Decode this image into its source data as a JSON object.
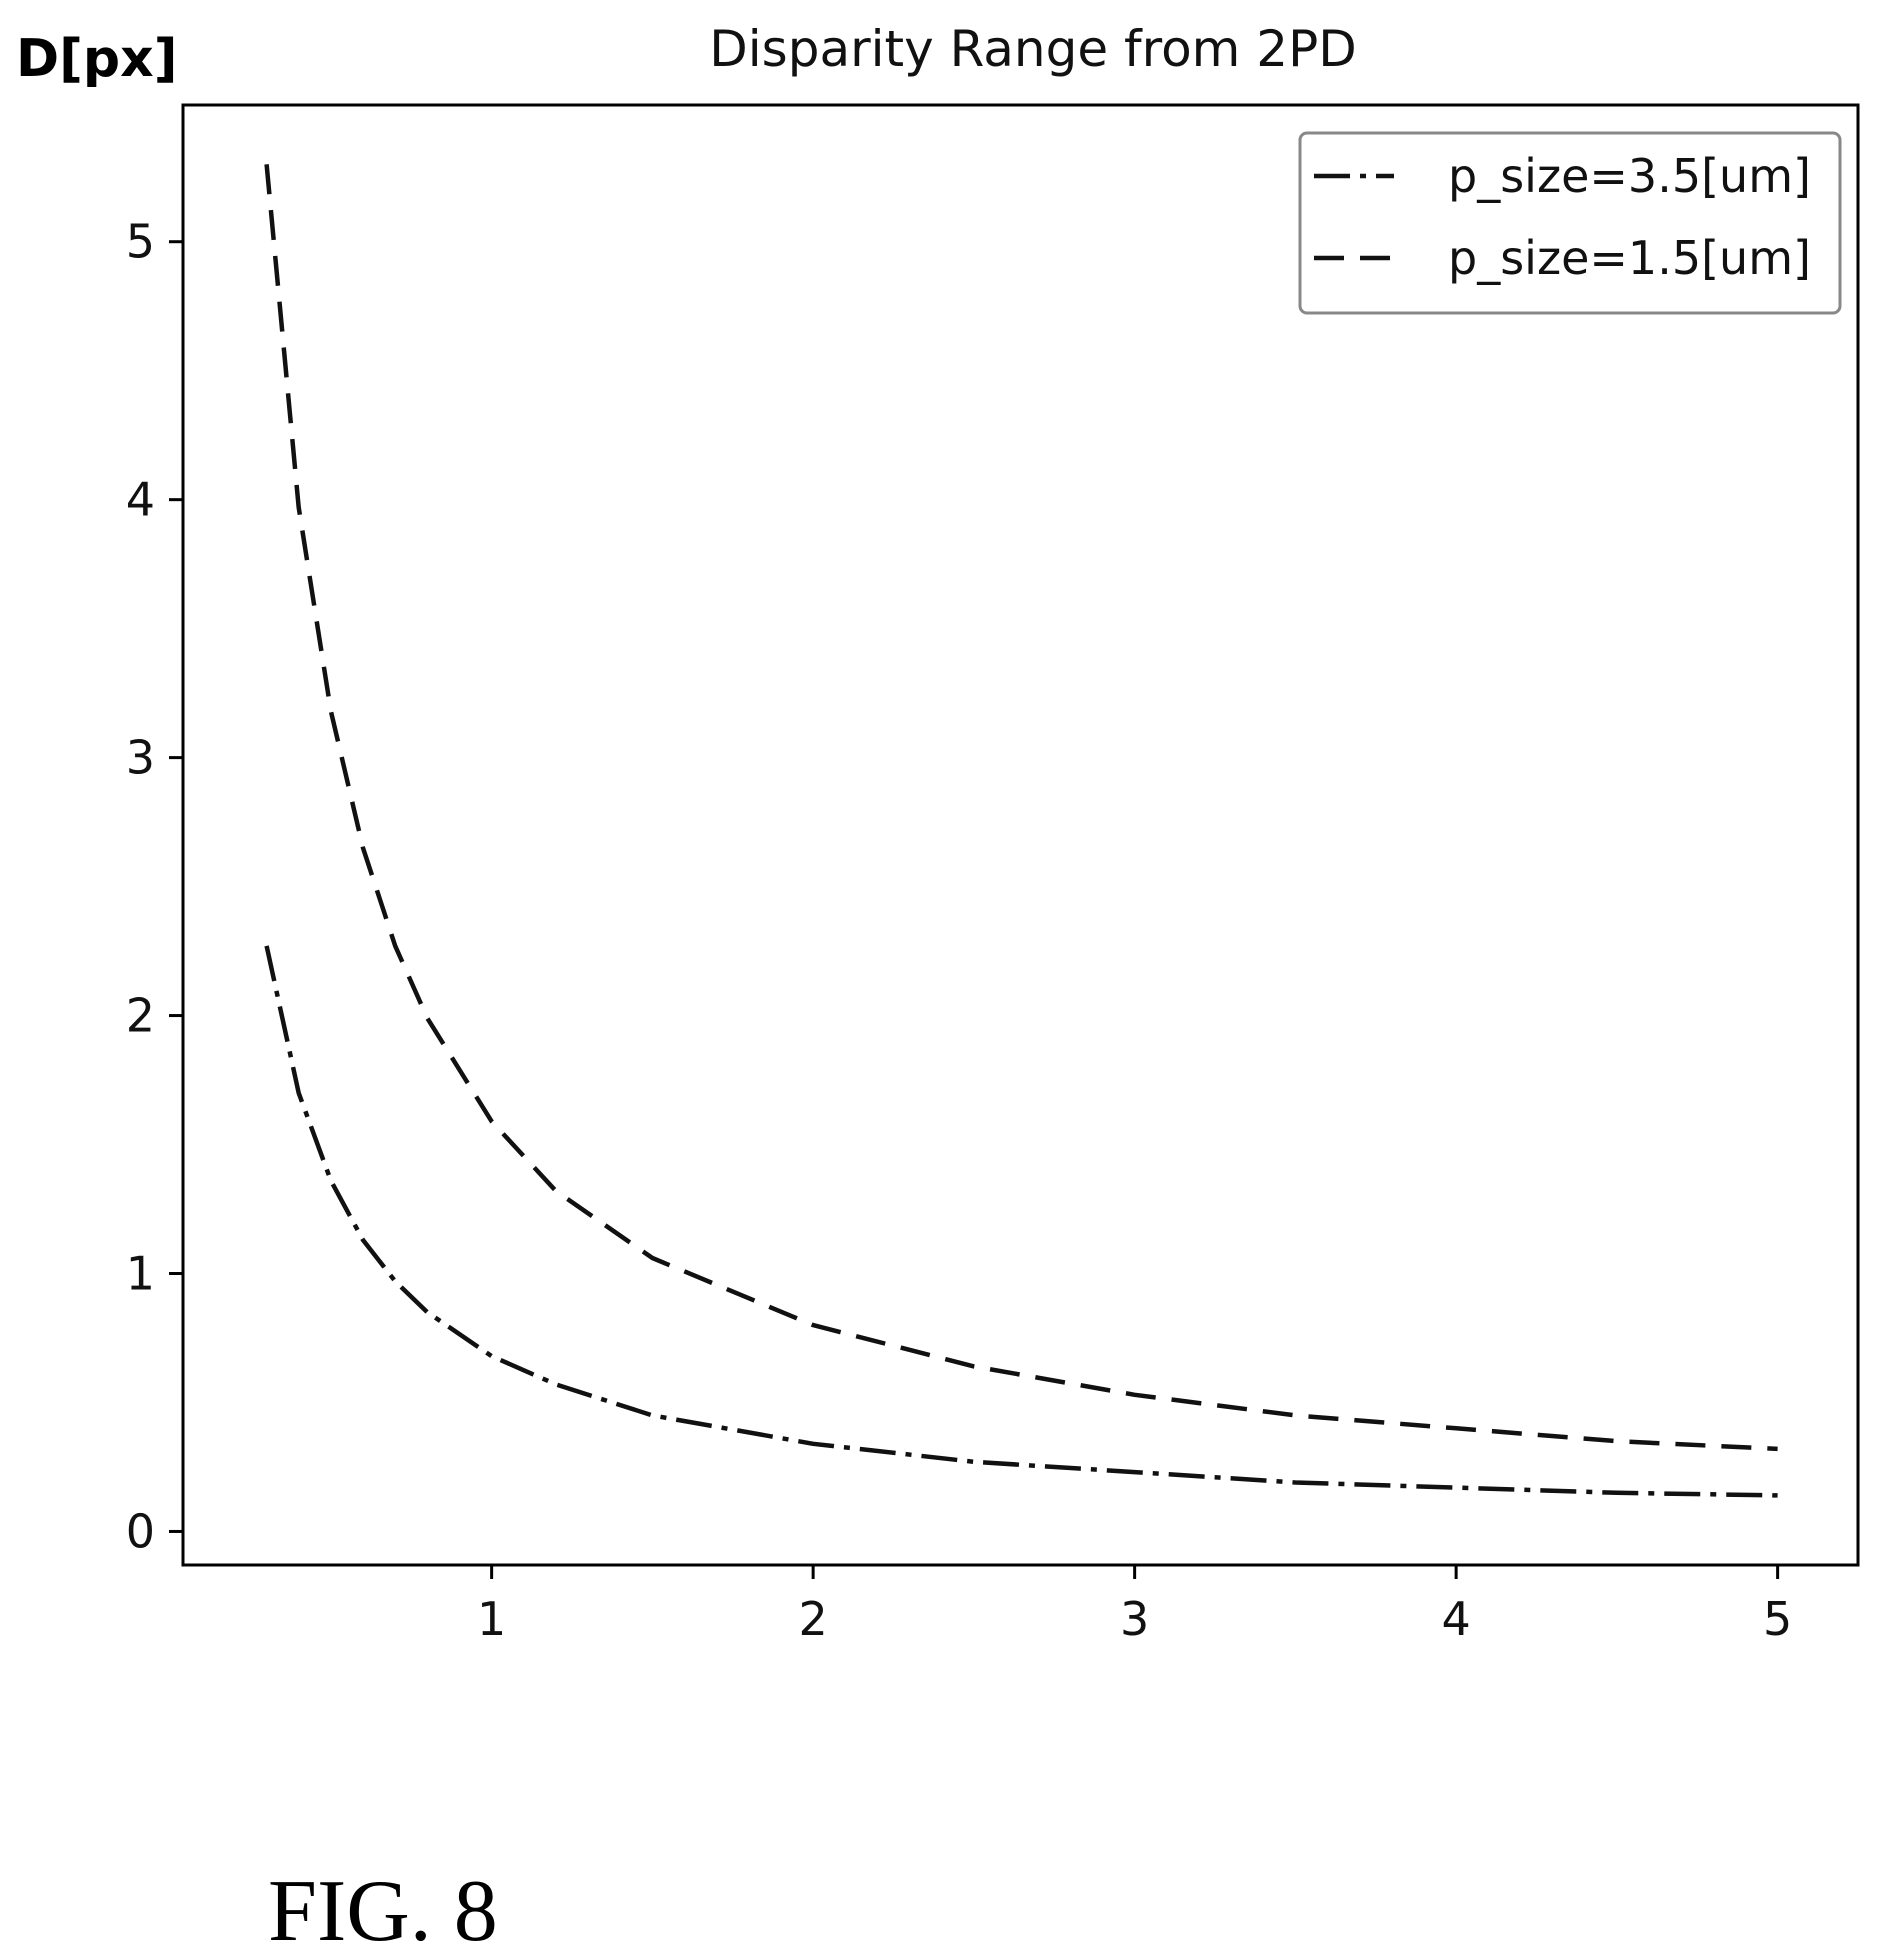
{
  "figure_caption": "FIG. 8",
  "chart_data": {
    "type": "line",
    "title": "Disparity Range from 2PD",
    "ylabel": "D[px]",
    "xlabel": "",
    "xlim": [
      0.04,
      5.25
    ],
    "ylim": [
      -0.13,
      5.53
    ],
    "xticks": [
      1,
      2,
      3,
      4,
      5
    ],
    "xtick_labels": [
      "1",
      "2",
      "3",
      "4",
      "5"
    ],
    "yticks": [
      0,
      1,
      2,
      3,
      4,
      5
    ],
    "ytick_labels": [
      "0",
      "1",
      "2",
      "3",
      "4",
      "5"
    ],
    "grid": false,
    "legend_position": "top-right",
    "series": [
      {
        "name": "p_size=3.5[um]",
        "style": "dash-dot",
        "color": "#111111",
        "x": [
          0.3,
          0.4,
          0.5,
          0.6,
          0.7,
          0.8,
          1.0,
          1.2,
          1.5,
          2.0,
          2.5,
          3.0,
          3.5,
          4.0,
          4.5,
          5.0
        ],
        "y": [
          2.27,
          1.7,
          1.36,
          1.13,
          0.97,
          0.85,
          0.68,
          0.57,
          0.45,
          0.34,
          0.27,
          0.23,
          0.19,
          0.17,
          0.15,
          0.14
        ]
      },
      {
        "name": "p_size=1.5[um]",
        "style": "dashed",
        "color": "#111111",
        "x": [
          0.3,
          0.4,
          0.5,
          0.6,
          0.7,
          0.8,
          1.0,
          1.2,
          1.5,
          2.0,
          2.5,
          3.0,
          3.5,
          4.0,
          4.5,
          5.0
        ],
        "y": [
          5.3,
          3.97,
          3.18,
          2.65,
          2.27,
          1.99,
          1.59,
          1.32,
          1.06,
          0.8,
          0.64,
          0.53,
          0.45,
          0.4,
          0.35,
          0.32
        ]
      }
    ]
  }
}
